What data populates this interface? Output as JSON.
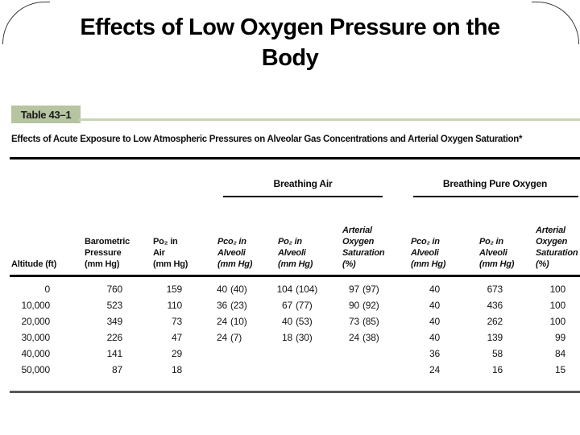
{
  "slide": {
    "title": "Effects of Low Oxygen Pressure on the\nBody"
  },
  "table": {
    "label": "Table 43–1",
    "caption": "Effects of Acute Exposure to Low Atmospheric Pressures on Alveolar Gas Concentrations and Arterial Oxygen Saturation*",
    "group_headers": [
      {
        "label": "Breathing Air",
        "spans_columns": [
          4,
          5,
          6
        ]
      },
      {
        "label": "Breathing Pure Oxygen",
        "spans_columns": [
          7,
          8,
          9
        ]
      }
    ],
    "columns": [
      {
        "label": "Altitude (ft)"
      },
      {
        "label": "Barometric\nPressure\n(mm Hg)"
      },
      {
        "label": "Po₂ in\nAir\n(mm Hg)"
      },
      {
        "label": "Pco₂ in\nAlveoli\n(mm Hg)"
      },
      {
        "label": "Po₂ in\nAlveoli\n(mm Hg)"
      },
      {
        "label": "Arterial\nOxygen\nSaturation\n(%)"
      },
      {
        "label": "Pco₂ in\nAlveoli\n(mm Hg)"
      },
      {
        "label": "Po₂ in\nAlveoli\n(mm Hg)"
      },
      {
        "label": "Arterial\nOxygen\nSaturation\n(%)"
      }
    ],
    "rows": [
      [
        "0",
        "760",
        "159",
        "40 (40)",
        "104 (104)",
        "97 (97)",
        "40",
        "673",
        "100"
      ],
      [
        "10,000",
        "523",
        "110",
        "36 (23)",
        "67 (77)",
        "90 (92)",
        "40",
        "436",
        "100"
      ],
      [
        "20,000",
        "349",
        "73",
        "24 (10)",
        "40 (53)",
        "73 (85)",
        "40",
        "262",
        "100"
      ],
      [
        "30,000",
        "226",
        "47",
        "24 (7)",
        "18 (30)",
        "24 (38)",
        "40",
        "139",
        "99"
      ],
      [
        "40,000",
        "141",
        "29",
        "",
        "",
        "",
        "36",
        "58",
        "84"
      ],
      [
        "50,000",
        "87",
        "18",
        "",
        "",
        "",
        "24",
        "16",
        "15"
      ]
    ],
    "colors": {
      "label_bg": "#b6c4a1",
      "green_rule": "#c9d4b8",
      "heavy_rule": "#000000",
      "bottom_rule": "#58585a"
    }
  }
}
